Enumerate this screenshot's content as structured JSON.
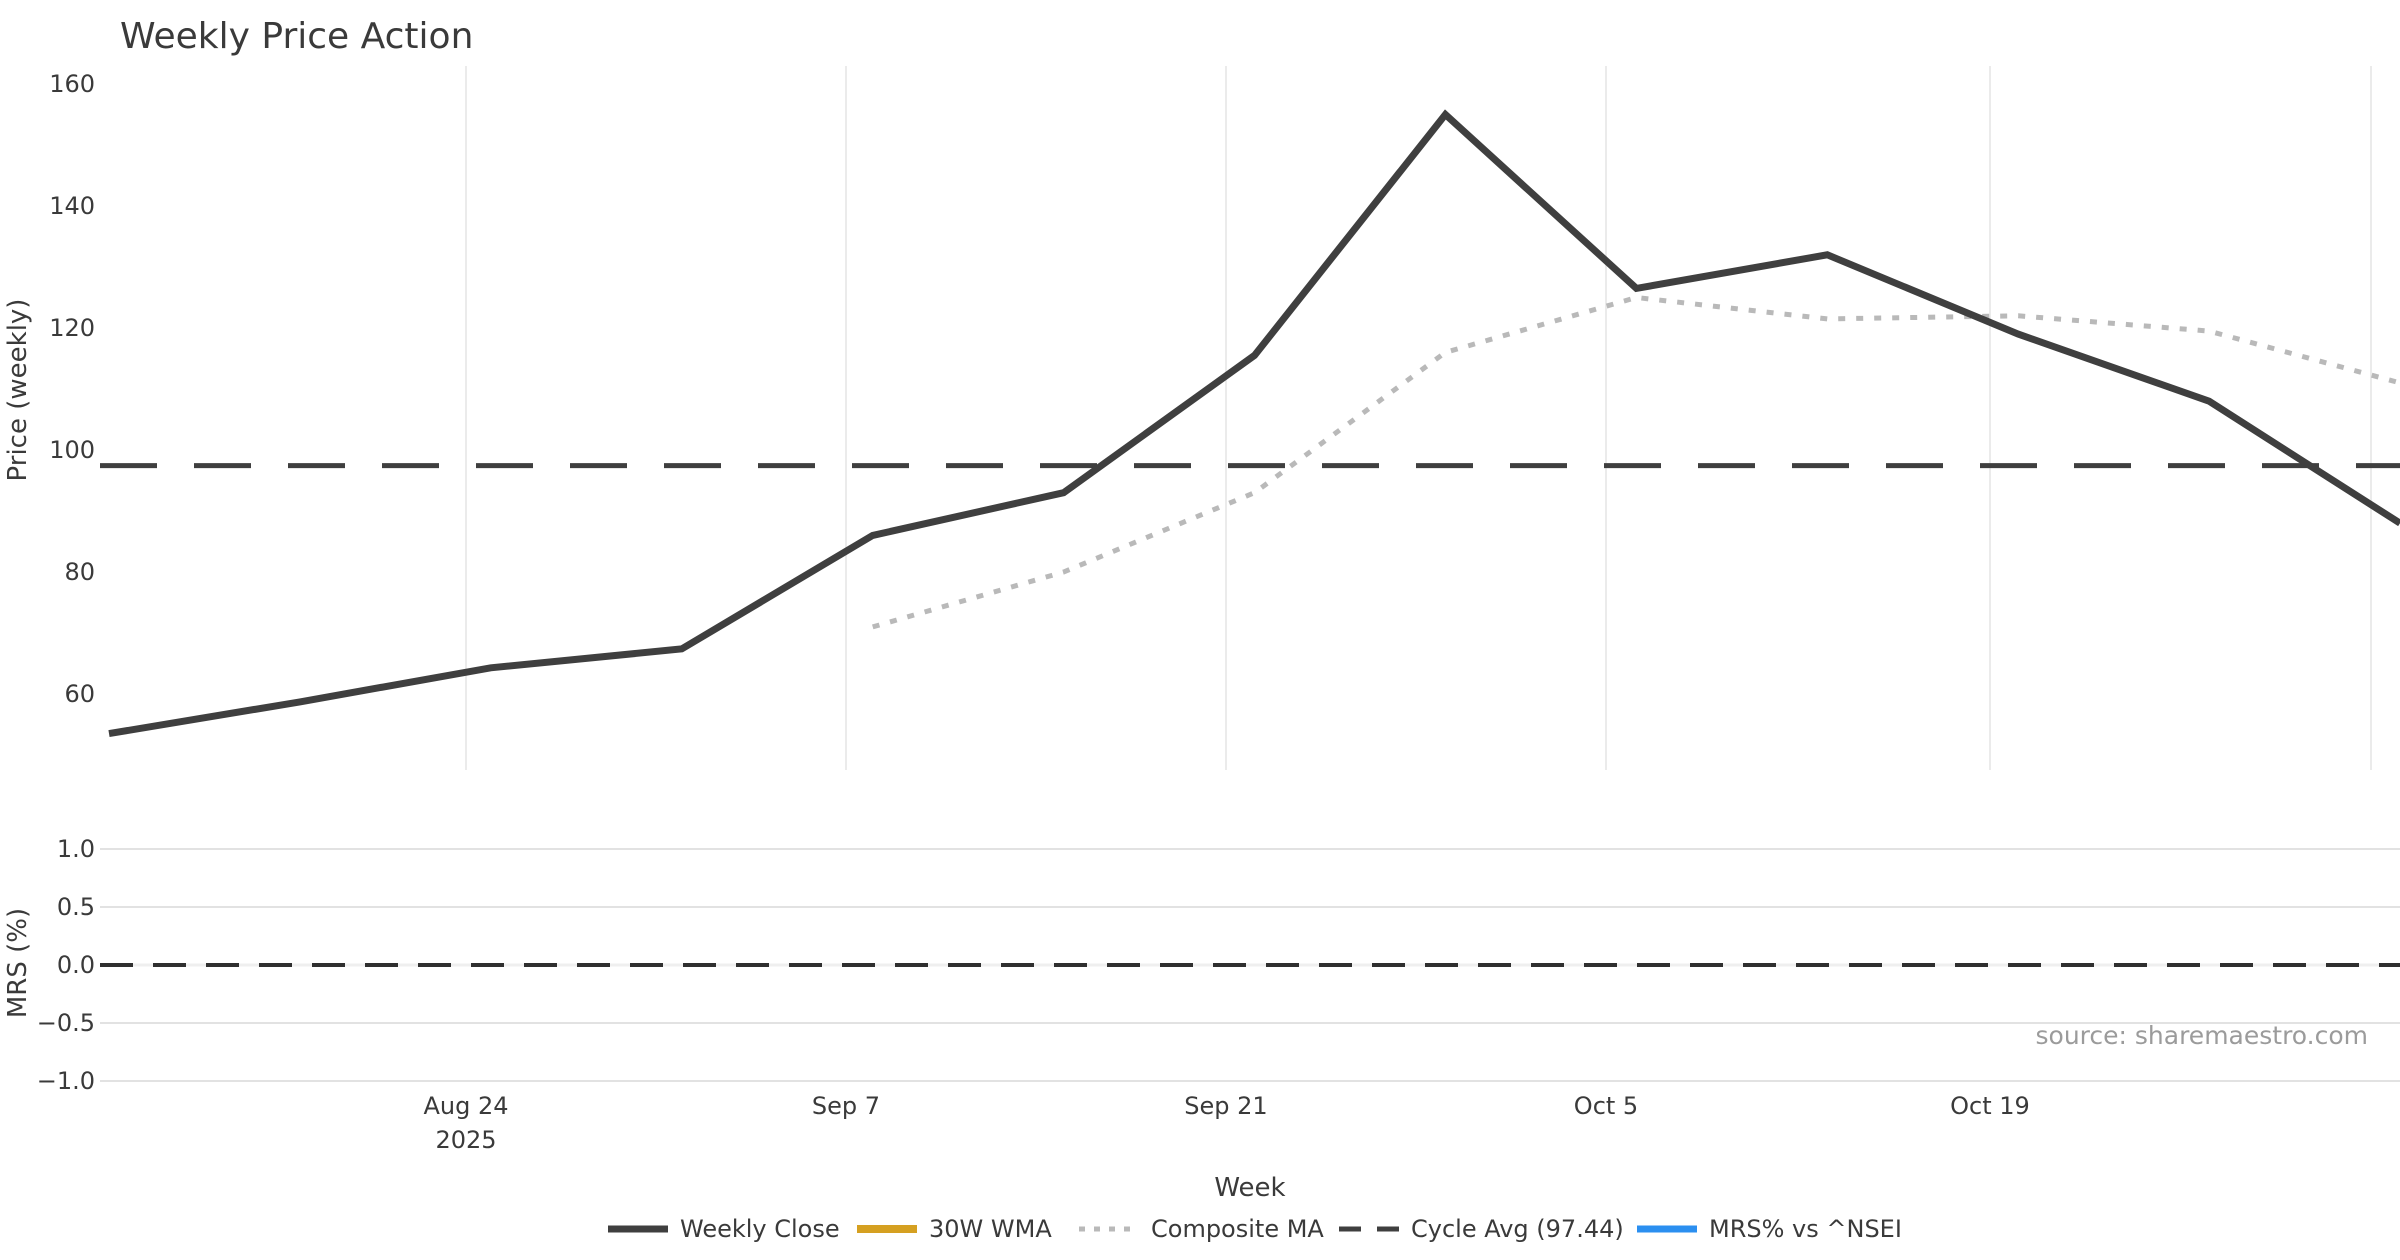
{
  "title": "Weekly Price Action",
  "source_note": "source: sharemaestro.com",
  "price_axis": {
    "label": "Price (weekly)",
    "ticks": [
      "160",
      "140",
      "120",
      "100",
      "80",
      "60"
    ]
  },
  "mrs_axis": {
    "label": "MRS (%)",
    "ticks": [
      "1.0",
      "0.5",
      "0.0",
      "−0.5",
      "−1.0"
    ]
  },
  "x_axis": {
    "label": "Week",
    "ticks": [
      "Aug 24",
      "Sep 7",
      "Sep 21",
      "Oct 5",
      "Oct 19"
    ],
    "year": "2025"
  },
  "legend": {
    "items": [
      {
        "label": "Weekly Close",
        "color": "#3f3f3f",
        "style": "solid"
      },
      {
        "label": "30W WMA",
        "color": "#d5a021",
        "style": "solid"
      },
      {
        "label": "Composite MA",
        "color": "#b9b9b9",
        "style": "dotted"
      },
      {
        "label": "Cycle Avg (97.44)",
        "color": "#3f3f3f",
        "style": "dashed"
      },
      {
        "label": "MRS% vs ^NSEI",
        "color": "#2b8ff0",
        "style": "solid"
      }
    ]
  },
  "colors": {
    "price_line": "#3f3f3f",
    "composite_line": "#b9b9b9",
    "cycle_avg_line": "#3f3f3f",
    "mrs_line": "#2b8ff0",
    "gridline": "#e9e9e9",
    "text": "#3a3a3a",
    "source_text": "#9b9b9b"
  },
  "chart_data": [
    {
      "type": "line",
      "title": "Weekly Price Action",
      "xlabel": "Week",
      "ylabel": "Price (weekly)",
      "x": [
        "Aug 11",
        "Aug 18",
        "Aug 25",
        "Sep 1",
        "Sep 8",
        "Sep 15",
        "Sep 22",
        "Sep 29",
        "Oct 6",
        "Oct 13",
        "Oct 20",
        "Oct 27",
        "Nov 3"
      ],
      "series": [
        {
          "name": "Weekly Close",
          "style": "solid",
          "color": "#3f3f3f",
          "values": [
            53.5,
            58.7,
            64.3,
            67.4,
            86.0,
            93.0,
            115.5,
            155.0,
            126.5,
            132.0,
            119.0,
            108.0,
            88.0
          ]
        },
        {
          "name": "30W WMA",
          "style": "solid",
          "color": "#d5a021",
          "values": []
        },
        {
          "name": "Composite MA",
          "style": "dotted",
          "color": "#b9b9b9",
          "values": [
            null,
            null,
            null,
            null,
            71.0,
            80.0,
            93.0,
            116.0,
            125.0,
            121.5,
            122.0,
            119.5,
            111.0
          ]
        },
        {
          "name": "Cycle Avg",
          "style": "dashed",
          "color": "#3f3f3f",
          "value": 97.44
        }
      ],
      "ylim": [
        47.5,
        163
      ],
      "yticks": [
        160,
        140,
        120,
        100,
        80,
        60
      ],
      "grid": "vertical-only",
      "legend_position": "bottom-center"
    },
    {
      "type": "line",
      "ylabel": "MRS (%)",
      "x": [
        "Aug 11",
        "Aug 18",
        "Aug 25",
        "Sep 1",
        "Sep 8",
        "Sep 15",
        "Sep 22",
        "Sep 29",
        "Oct 6",
        "Oct 13",
        "Oct 20",
        "Oct 27",
        "Nov 3"
      ],
      "series": [
        {
          "name": "MRS% vs ^NSEI",
          "style": "solid",
          "color": "#2b8ff0",
          "values": []
        },
        {
          "name": "Zero reference",
          "style": "dashed",
          "color": "#2f2f2f",
          "value": 0.0
        }
      ],
      "ylim": [
        -1.05,
        1.15
      ],
      "yticks": [
        1.0,
        0.5,
        0.0,
        -0.5,
        -1.0
      ],
      "grid": "horizontal-only"
    }
  ]
}
